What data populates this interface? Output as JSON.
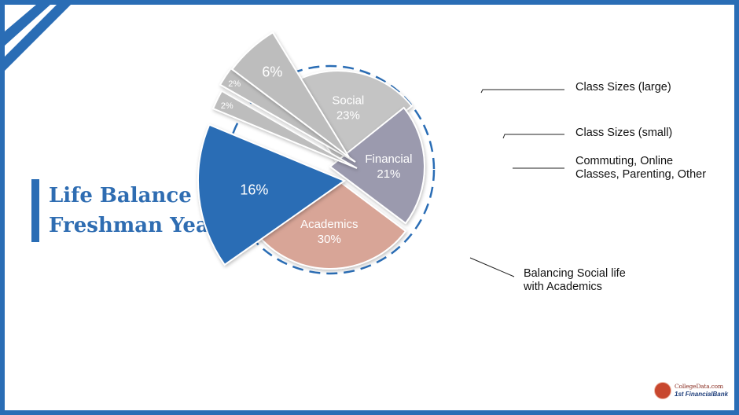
{
  "title": {
    "line1": "Life Balance in",
    "line2": "Freshman Year"
  },
  "colors": {
    "brand_blue": "#2a6db5",
    "financial": "#9b9aae",
    "social": "#c4c4c4",
    "academics": "#d8a597",
    "balancing": "#2a6db5",
    "exploded_gray": "#bdbdbd"
  },
  "chart_data": {
    "type": "pie",
    "title": "Life Balance in Freshman Year",
    "slices": [
      {
        "label": "Social",
        "value": 23,
        "value_label": "23%"
      },
      {
        "label": "Financial",
        "value": 21,
        "value_label": "21%"
      },
      {
        "label": "Academics",
        "value": 30,
        "value_label": "30%"
      },
      {
        "label": "Balancing Social life with Academics",
        "value": 16,
        "value_label": "16%"
      },
      {
        "label": "Commuting, Online Classes, Parenting, Other",
        "value": 2,
        "value_label": "2%"
      },
      {
        "label": "Class Sizes (small)",
        "value": 2,
        "value_label": "2%"
      },
      {
        "label": "Class Sizes (large)",
        "value": 6,
        "value_label": "6%"
      }
    ]
  },
  "callouts": {
    "large": "Class Sizes (large)",
    "small": "Class Sizes (small)",
    "other_line1": "Commuting, Online",
    "other_line2": "Classes, Parenting, Other",
    "balancing_line1": "Balancing Social life",
    "balancing_line2": "with Academics"
  },
  "logo": {
    "line1": "CollegeData.com",
    "line2": "1st FinancialBank"
  }
}
